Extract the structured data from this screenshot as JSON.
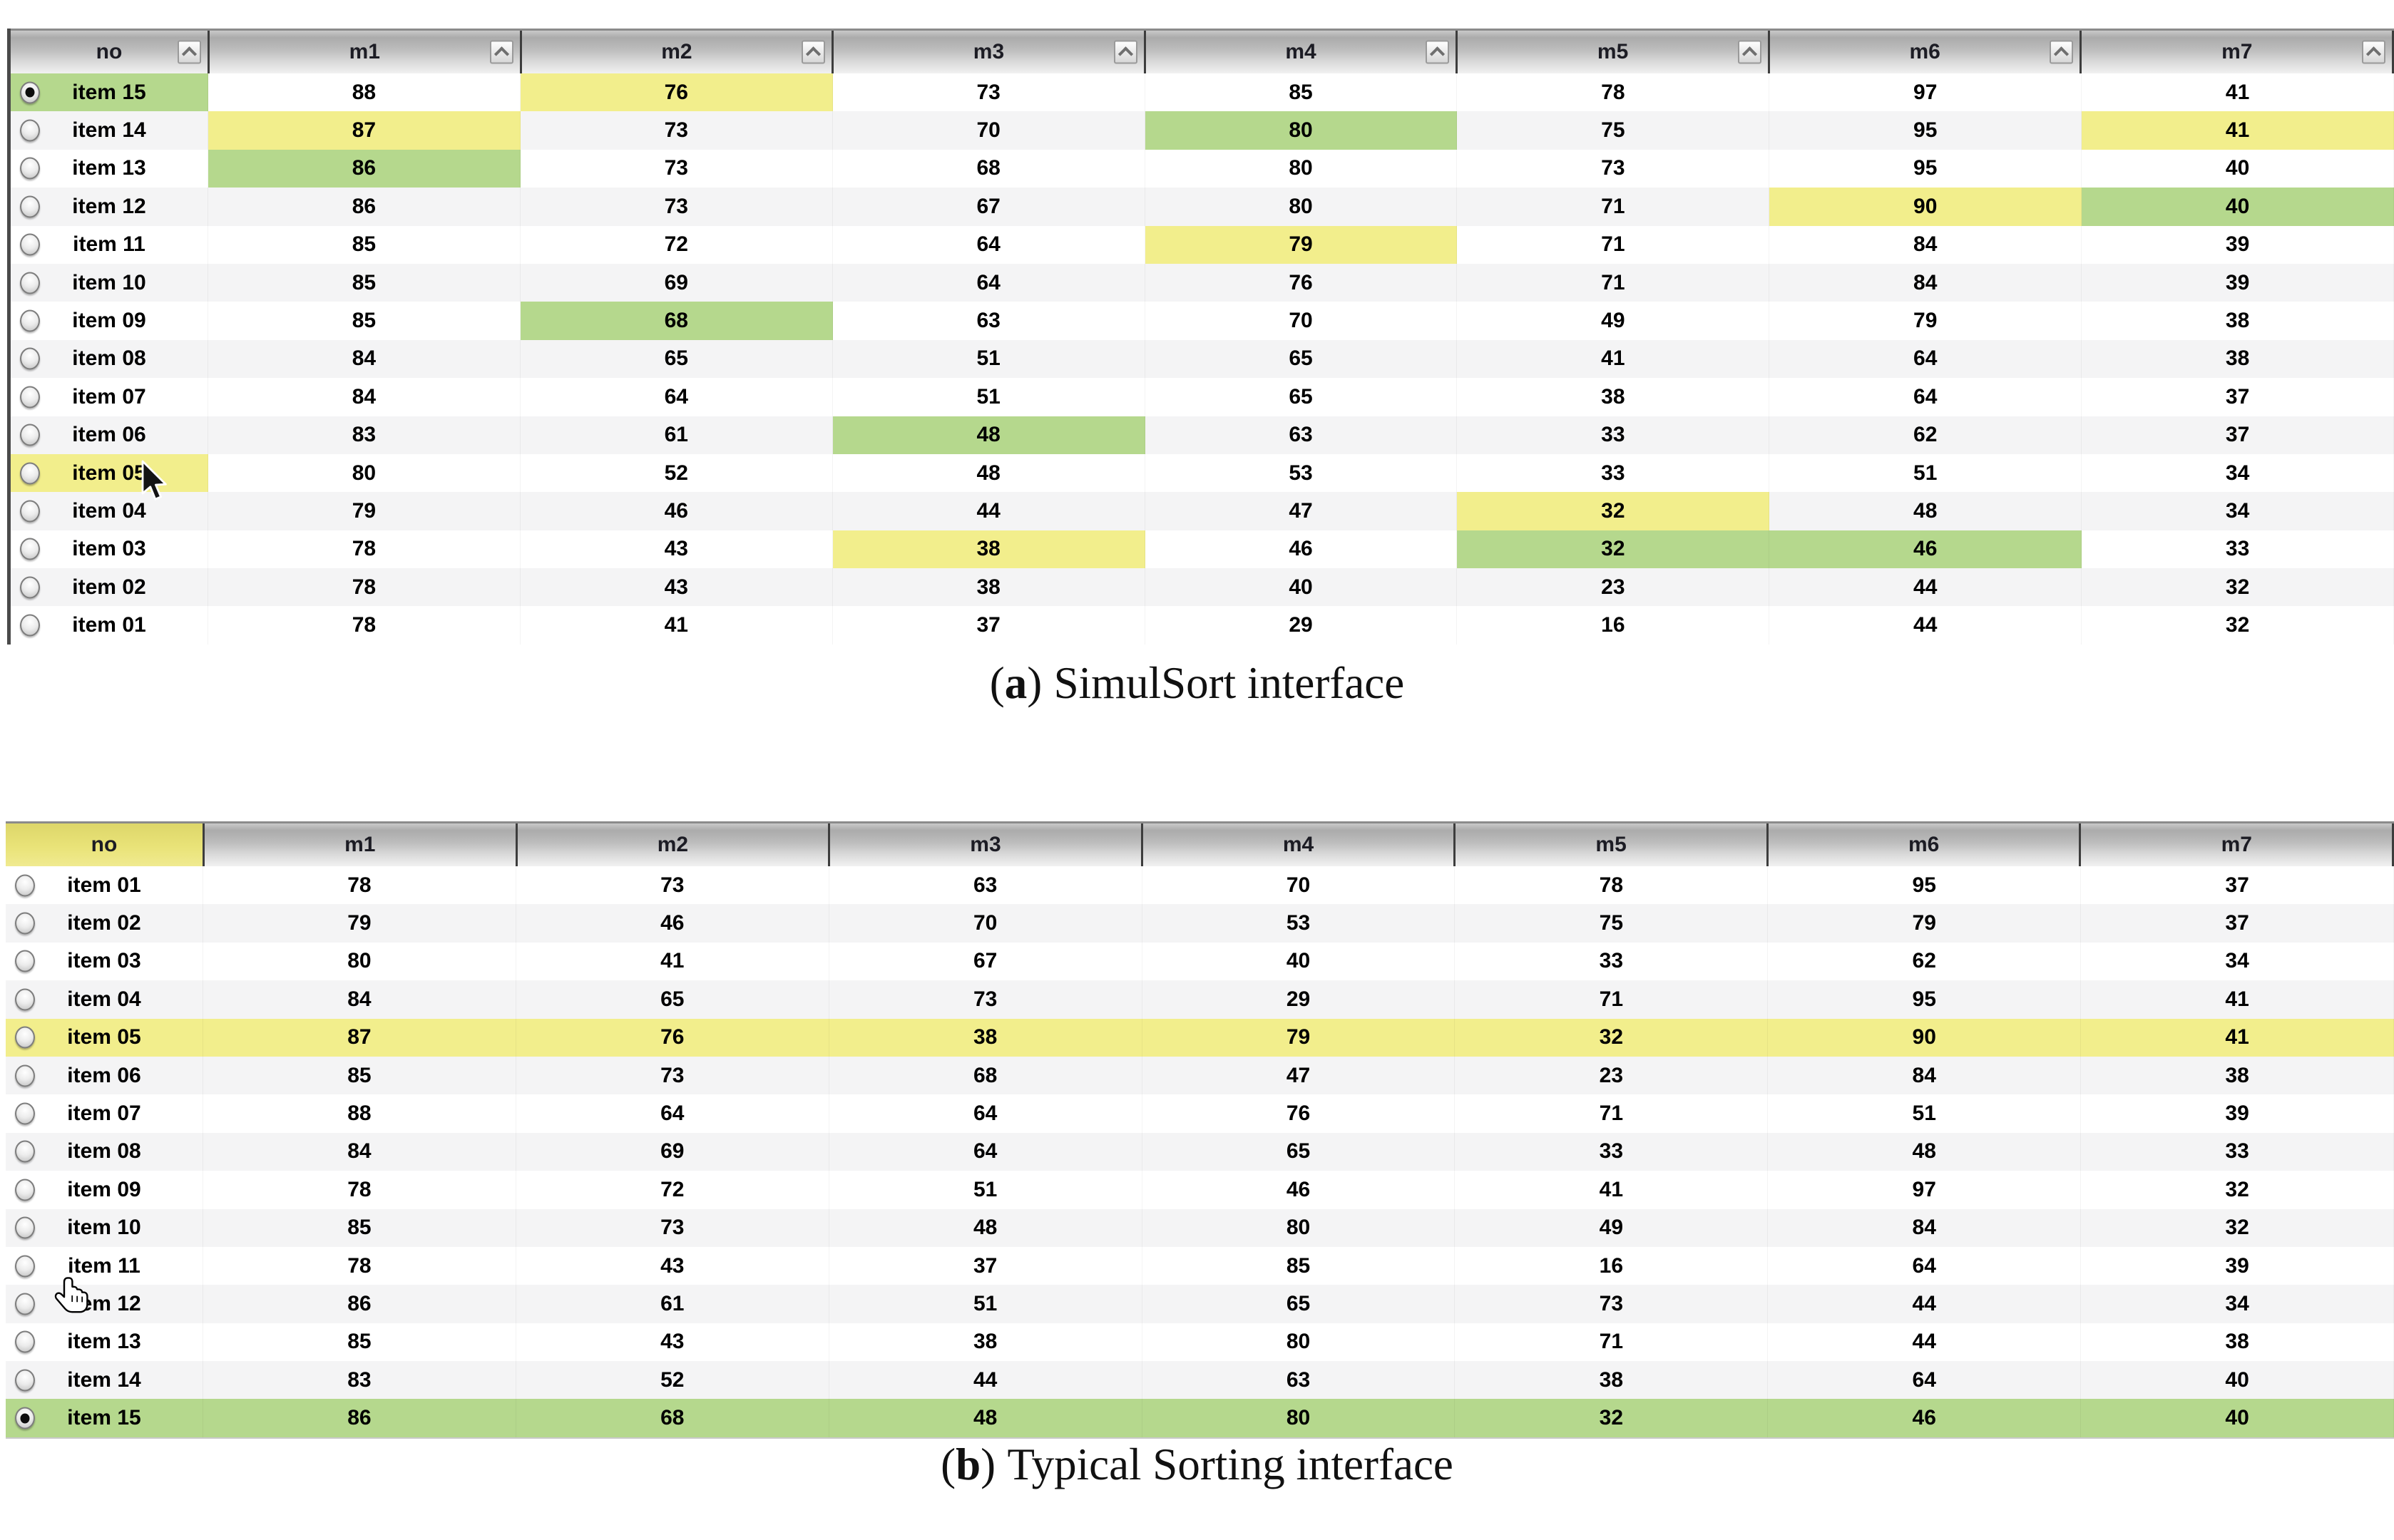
{
  "captions": {
    "a": {
      "open": "(",
      "label": "a",
      "close": ")",
      "text": "SimulSort interface"
    },
    "b": {
      "open": "(",
      "label": "b",
      "close": ")",
      "text": "Typical Sorting interface"
    }
  },
  "colors": {
    "highlight_yellow": "#F2EE8C",
    "highlight_green": "#B5D88D",
    "sorted_header_yellow": "#E6E06E",
    "row_stripe": "#F4F4F5"
  },
  "icons": {
    "header_sort_button": "chevron-up-icon",
    "cursor_a": "arrow-cursor",
    "cursor_b": "pointing-hand-cursor"
  },
  "tables": [
    {
      "id": "a",
      "name": "simulsort-interface",
      "columns": [
        {
          "label": "no",
          "sort_button": true
        },
        {
          "label": "m1",
          "sort_button": true
        },
        {
          "label": "m2",
          "sort_button": true
        },
        {
          "label": "m3",
          "sort_button": true
        },
        {
          "label": "m4",
          "sort_button": true
        },
        {
          "label": "m5",
          "sort_button": true
        },
        {
          "label": "m6",
          "sort_button": true
        },
        {
          "label": "m7",
          "sort_button": true
        }
      ],
      "rows": [
        {
          "label": "item 15",
          "radio": "selected",
          "no_highlight": "green",
          "values": [
            88,
            76,
            73,
            85,
            78,
            97,
            41
          ],
          "highlights": {
            "m2": "yellow"
          }
        },
        {
          "label": "item 14",
          "radio": "unselected",
          "values": [
            87,
            73,
            70,
            80,
            75,
            95,
            41
          ],
          "highlights": {
            "m1": "yellow",
            "m4": "green",
            "m7": "yellow"
          }
        },
        {
          "label": "item 13",
          "radio": "unselected",
          "values": [
            86,
            73,
            68,
            80,
            73,
            95,
            40
          ],
          "highlights": {
            "m1": "green"
          }
        },
        {
          "label": "item 12",
          "radio": "unselected",
          "values": [
            86,
            73,
            67,
            80,
            71,
            90,
            40
          ],
          "highlights": {
            "m6": "yellow",
            "m7": "green"
          }
        },
        {
          "label": "item 11",
          "radio": "unselected",
          "values": [
            85,
            72,
            64,
            79,
            71,
            84,
            39
          ],
          "highlights": {
            "m4": "yellow"
          }
        },
        {
          "label": "item 10",
          "radio": "unselected",
          "values": [
            85,
            69,
            64,
            76,
            71,
            84,
            39
          ],
          "highlights": {}
        },
        {
          "label": "item 09",
          "radio": "unselected",
          "values": [
            85,
            68,
            63,
            70,
            49,
            79,
            38
          ],
          "highlights": {
            "m2": "green"
          }
        },
        {
          "label": "item 08",
          "radio": "unselected",
          "values": [
            84,
            65,
            51,
            65,
            41,
            64,
            38
          ],
          "highlights": {}
        },
        {
          "label": "item 07",
          "radio": "unselected",
          "values": [
            84,
            64,
            51,
            65,
            38,
            64,
            37
          ],
          "highlights": {}
        },
        {
          "label": "item 06",
          "radio": "unselected",
          "values": [
            83,
            61,
            48,
            63,
            33,
            62,
            37
          ],
          "highlights": {
            "m3": "green"
          }
        },
        {
          "label": "item 05",
          "radio": "unselected",
          "no_highlight": "yellow",
          "values": [
            80,
            52,
            48,
            53,
            33,
            51,
            34
          ],
          "highlights": {}
        },
        {
          "label": "item 04",
          "radio": "unselected",
          "values": [
            79,
            46,
            44,
            47,
            32,
            48,
            34
          ],
          "highlights": {
            "m5": "yellow"
          }
        },
        {
          "label": "item 03",
          "radio": "unselected",
          "values": [
            78,
            43,
            38,
            46,
            32,
            46,
            33
          ],
          "highlights": {
            "m3": "yellow",
            "m5": "green",
            "m6": "green"
          }
        },
        {
          "label": "item 02",
          "radio": "unselected",
          "values": [
            78,
            43,
            38,
            40,
            23,
            44,
            32
          ],
          "highlights": {}
        },
        {
          "label": "item 01",
          "radio": "unselected",
          "values": [
            78,
            41,
            37,
            29,
            16,
            44,
            32
          ],
          "highlights": {}
        }
      ]
    },
    {
      "id": "b",
      "name": "typical-sorting-interface",
      "columns": [
        {
          "label": "no",
          "sorted": true
        },
        {
          "label": "m1"
        },
        {
          "label": "m2"
        },
        {
          "label": "m3"
        },
        {
          "label": "m4"
        },
        {
          "label": "m5"
        },
        {
          "label": "m6"
        },
        {
          "label": "m7"
        }
      ],
      "rows": [
        {
          "label": "item 01",
          "radio": "unselected",
          "values": [
            78,
            73,
            63,
            70,
            78,
            95,
            37
          ]
        },
        {
          "label": "item 02",
          "radio": "unselected",
          "values": [
            79,
            46,
            70,
            53,
            75,
            79,
            37
          ]
        },
        {
          "label": "item 03",
          "radio": "unselected",
          "values": [
            80,
            41,
            67,
            40,
            33,
            62,
            34
          ]
        },
        {
          "label": "item 04",
          "radio": "unselected",
          "values": [
            84,
            65,
            73,
            29,
            71,
            95,
            41
          ]
        },
        {
          "label": "item 05",
          "radio": "unselected",
          "row_highlight": "yellow",
          "values": [
            87,
            76,
            38,
            79,
            32,
            90,
            41
          ]
        },
        {
          "label": "item 06",
          "radio": "unselected",
          "values": [
            85,
            73,
            68,
            47,
            23,
            84,
            38
          ]
        },
        {
          "label": "item 07",
          "radio": "unselected",
          "values": [
            88,
            64,
            64,
            76,
            71,
            51,
            39
          ]
        },
        {
          "label": "item 08",
          "radio": "unselected",
          "values": [
            84,
            69,
            64,
            65,
            33,
            48,
            33
          ]
        },
        {
          "label": "item 09",
          "radio": "unselected",
          "values": [
            78,
            72,
            51,
            46,
            41,
            97,
            32
          ]
        },
        {
          "label": "item 10",
          "radio": "unselected",
          "values": [
            85,
            73,
            48,
            80,
            49,
            84,
            32
          ]
        },
        {
          "label": "item 11",
          "radio": "unselected",
          "values": [
            78,
            43,
            37,
            85,
            16,
            64,
            39
          ]
        },
        {
          "label": "item 12",
          "radio": "unselected",
          "values": [
            86,
            61,
            51,
            65,
            73,
            44,
            34
          ]
        },
        {
          "label": "item 13",
          "radio": "unselected",
          "values": [
            85,
            43,
            38,
            80,
            71,
            44,
            38
          ]
        },
        {
          "label": "item 14",
          "radio": "unselected",
          "values": [
            83,
            52,
            44,
            63,
            38,
            64,
            40
          ]
        },
        {
          "label": "item 15",
          "radio": "selected",
          "row_highlight": "green",
          "values": [
            86,
            68,
            48,
            80,
            32,
            46,
            40
          ]
        }
      ]
    }
  ]
}
